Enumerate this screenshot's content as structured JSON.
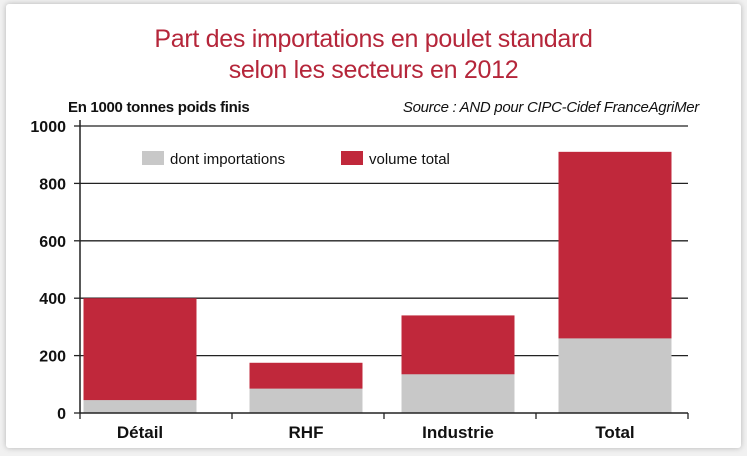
{
  "chart_data": {
    "type": "bar",
    "title": "Part des importations en poulet standard selon les secteurs en 2012",
    "title_lines": [
      "Part des importations en poulet standard",
      "selon les secteurs en 2012"
    ],
    "ylabel": "En 1000 tonnes poids finis",
    "source": "Source : AND pour CIPC-Cidef FranceAgriMer",
    "categories": [
      "Détail",
      "RHF",
      "Industrie",
      "Total"
    ],
    "series": [
      {
        "name": "dont  importations",
        "color": "#c8c8c8",
        "values": [
          45,
          85,
          135,
          260
        ]
      },
      {
        "name": "volume total",
        "color": "#c0283b",
        "values": [
          400,
          175,
          340,
          910
        ]
      }
    ],
    "ylim": [
      0,
      1000
    ],
    "yticks": [
      "0",
      "200",
      "400",
      "600",
      "800",
      "1000"
    ],
    "yticks_values": [
      0,
      200,
      400,
      600,
      800,
      1000
    ],
    "grid": true,
    "legend_position": "top-left"
  }
}
